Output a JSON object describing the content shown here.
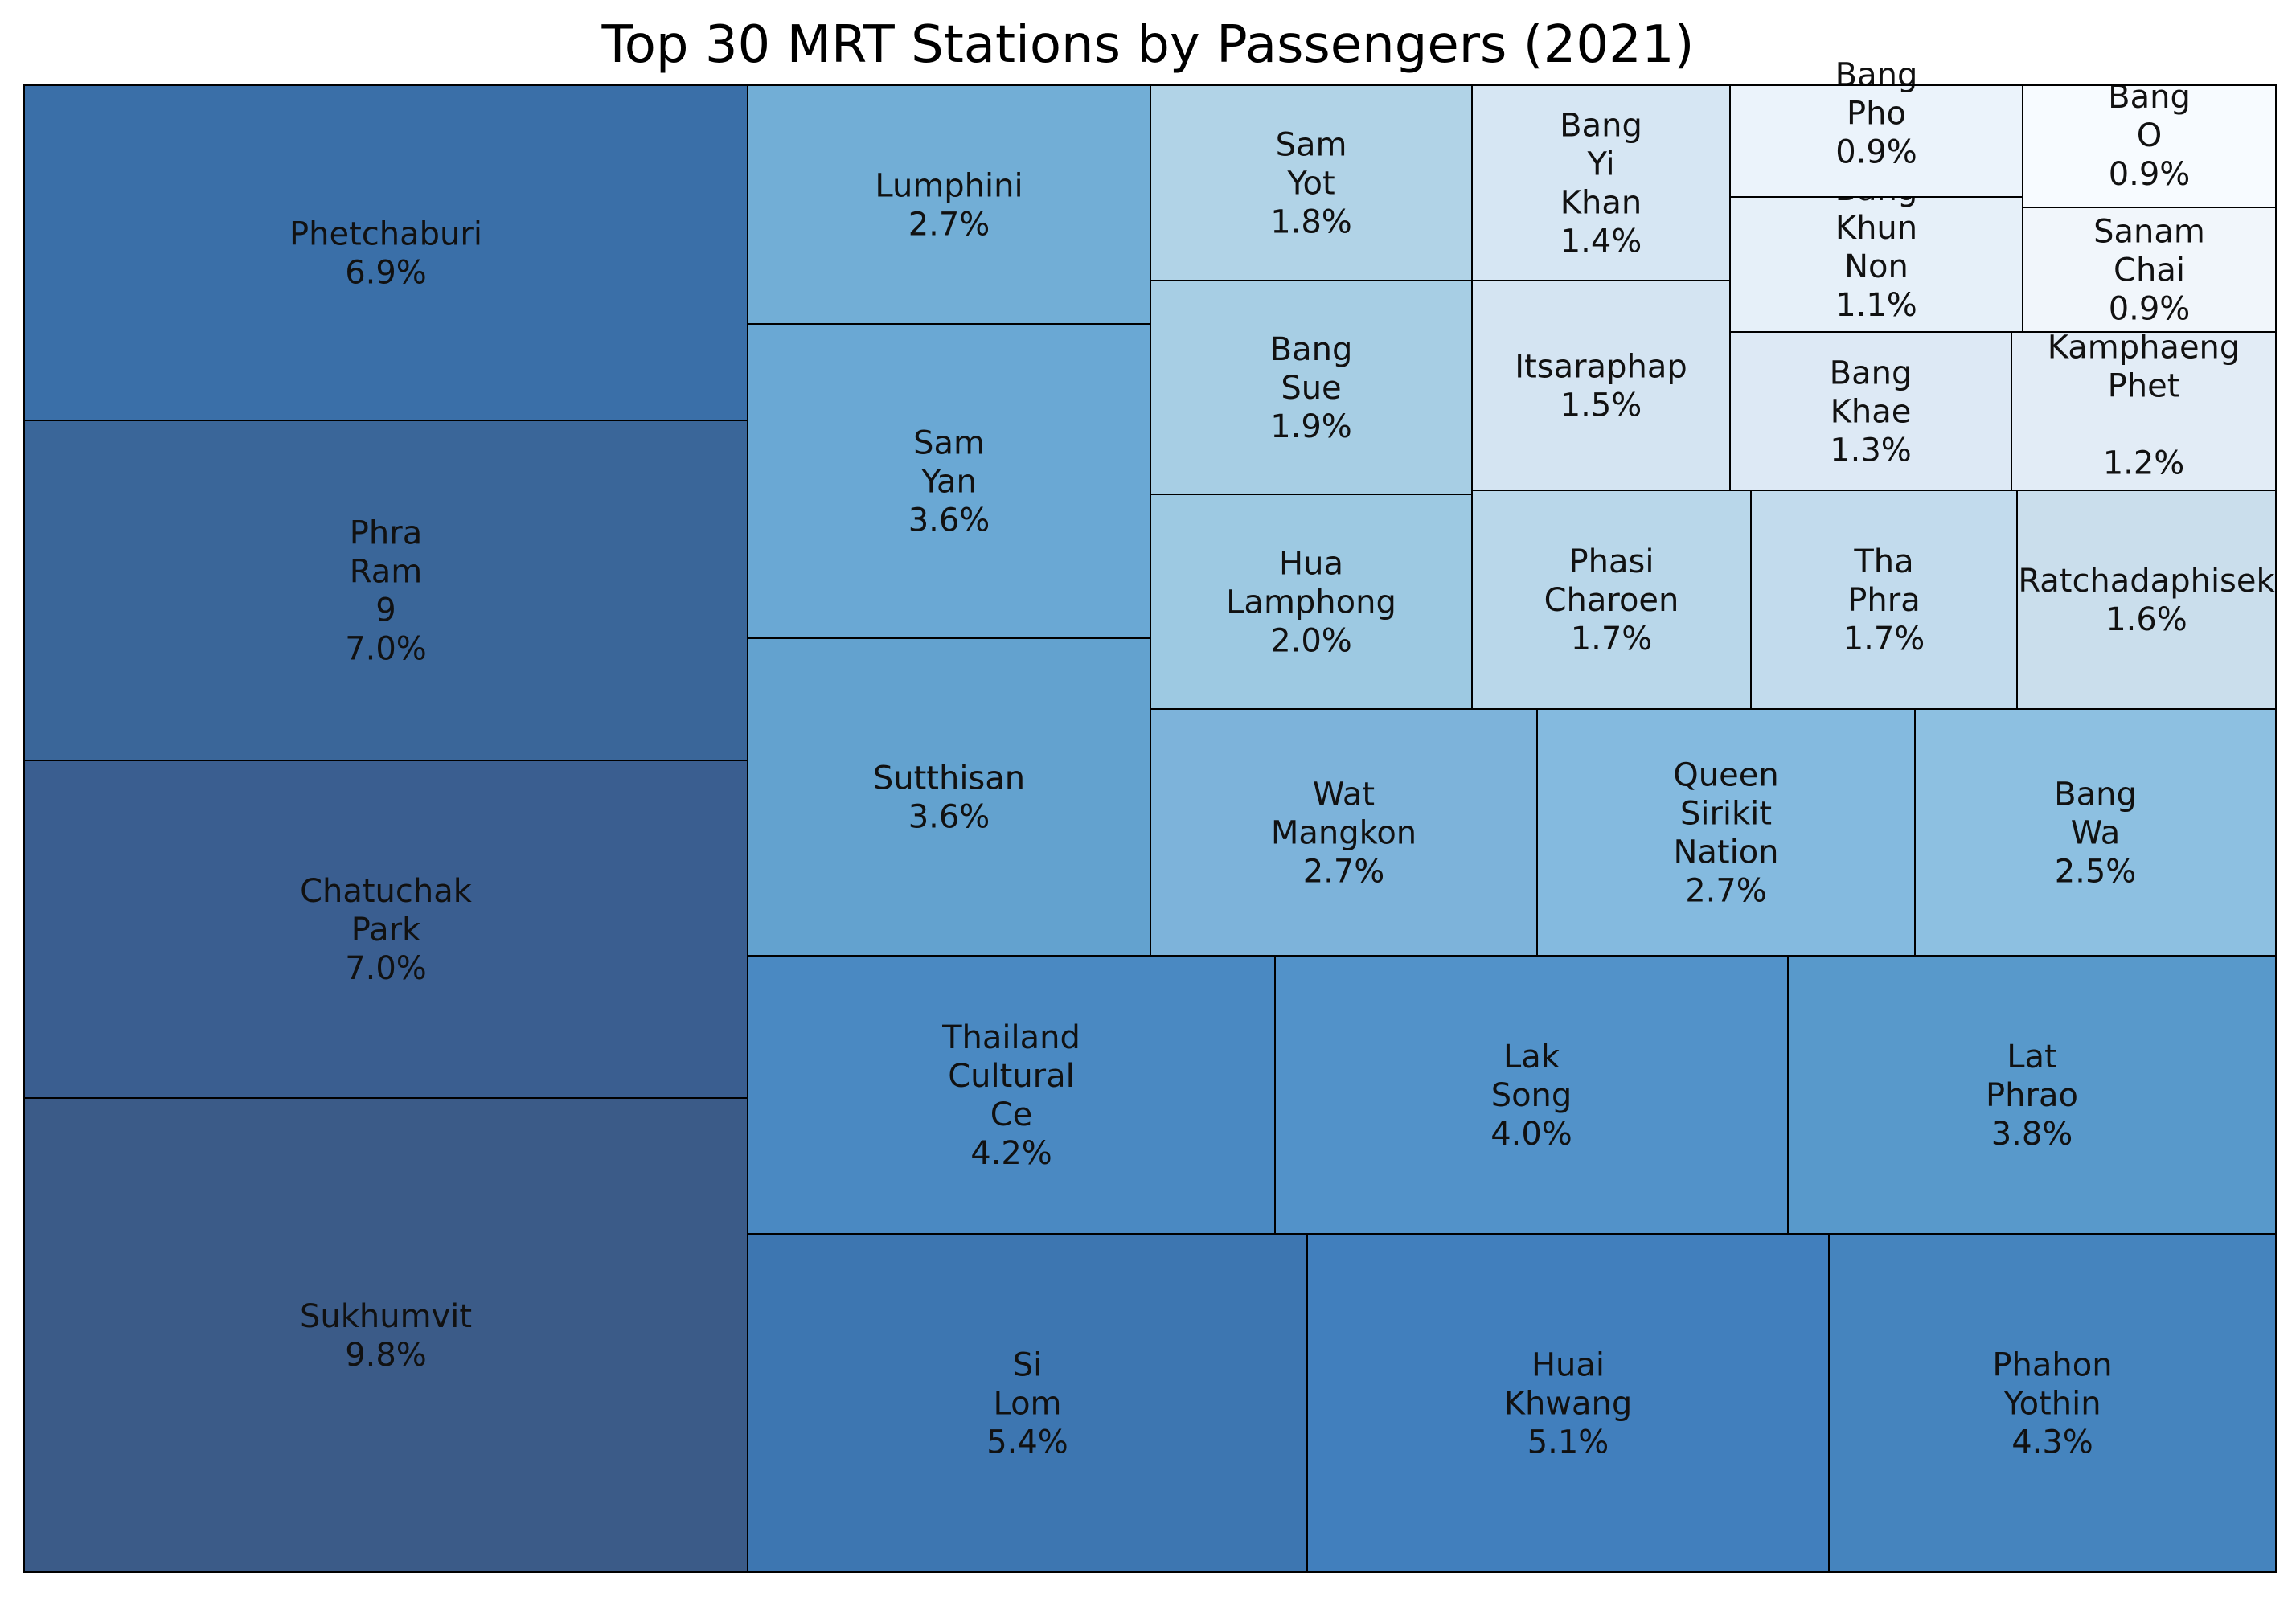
{
  "chart_data": {
    "type": "treemap",
    "title": "Top 30 MRT Stations by Passengers (2021)",
    "unit": "%",
    "items": [
      {
        "id": "sukhumvit",
        "label": [
          "Sukhumvit"
        ],
        "value": 9.8,
        "value_label": "9.8%",
        "color": "#3b5b88"
      },
      {
        "id": "chatuchak-park",
        "label": [
          "Chatuchak",
          "Park"
        ],
        "value": 7.0,
        "value_label": "7.0%",
        "color": "#3a5e90"
      },
      {
        "id": "phra-ram-9",
        "label": [
          "Phra",
          "Ram",
          "9"
        ],
        "value": 7.0,
        "value_label": "7.0%",
        "color": "#3a6699"
      },
      {
        "id": "phetchaburi",
        "label": [
          "Phetchaburi"
        ],
        "value": 6.9,
        "value_label": "6.9%",
        "color": "#3a6fa8"
      },
      {
        "id": "si-lom",
        "label": [
          "Si",
          "Lom"
        ],
        "value": 5.4,
        "value_label": "5.4%",
        "color": "#3d76b1"
      },
      {
        "id": "huai-khwang",
        "label": [
          "Huai",
          "Khwang"
        ],
        "value": 5.1,
        "value_label": "5.1%",
        "color": "#417fbd"
      },
      {
        "id": "phahon-yothin",
        "label": [
          "Phahon",
          "Yothin"
        ],
        "value": 4.3,
        "value_label": "4.3%",
        "color": "#4584be"
      },
      {
        "id": "thailand-cultural-ce",
        "label": [
          "Thailand",
          "Cultural",
          "Ce"
        ],
        "value": 4.2,
        "value_label": "4.2%",
        "color": "#4a89c2"
      },
      {
        "id": "lak-song",
        "label": [
          "Lak",
          "Song"
        ],
        "value": 4.0,
        "value_label": "4.0%",
        "color": "#5292c9"
      },
      {
        "id": "lat-phrao",
        "label": [
          "Lat",
          "Phrao"
        ],
        "value": 3.8,
        "value_label": "3.8%",
        "color": "#5899cb"
      },
      {
        "id": "sam-yan",
        "label": [
          "Sam",
          "Yan"
        ],
        "value": 3.6,
        "value_label": "3.6%",
        "color": "#6aa8d4"
      },
      {
        "id": "sutthisan",
        "label": [
          "Sutthisan"
        ],
        "value": 3.6,
        "value_label": "3.6%",
        "color": "#63a2cf"
      },
      {
        "id": "lumphini",
        "label": [
          "Lumphini"
        ],
        "value": 2.7,
        "value_label": "2.7%",
        "color": "#72aed6"
      },
      {
        "id": "wat-mangkon",
        "label": [
          "Wat",
          "Mangkon"
        ],
        "value": 2.7,
        "value_label": "2.7%",
        "color": "#7db3da"
      },
      {
        "id": "queen-sirikit-nation",
        "label": [
          "Queen",
          "Sirikit",
          "Nation"
        ],
        "value": 2.7,
        "value_label": "2.7%",
        "color": "#84badf"
      },
      {
        "id": "bang-wa",
        "label": [
          "Bang",
          "Wa"
        ],
        "value": 2.5,
        "value_label": "2.5%",
        "color": "#8dc0e1"
      },
      {
        "id": "hua-lamphong",
        "label": [
          "Hua",
          "Lamphong"
        ],
        "value": 2.0,
        "value_label": "2.0%",
        "color": "#9dc9e2"
      },
      {
        "id": "bang-sue",
        "label": [
          "Bang",
          "Sue"
        ],
        "value": 1.9,
        "value_label": "1.9%",
        "color": "#a7cee4"
      },
      {
        "id": "sam-yot",
        "label": [
          "Sam",
          "Yot"
        ],
        "value": 1.8,
        "value_label": "1.8%",
        "color": "#b1d3e7"
      },
      {
        "id": "phasi-charoen",
        "label": [
          "Phasi",
          "Charoen"
        ],
        "value": 1.7,
        "value_label": "1.7%",
        "color": "#b9d7ea"
      },
      {
        "id": "tha-phra",
        "label": [
          "Tha",
          "Phra"
        ],
        "value": 1.7,
        "value_label": "1.7%",
        "color": "#c2dbed"
      },
      {
        "id": "ratchadaphisek",
        "label": [
          "Ratchadaphisek"
        ],
        "value": 1.6,
        "value_label": "1.6%",
        "color": "#cadeec"
      },
      {
        "id": "itsaraphap",
        "label": [
          "Itsaraphap"
        ],
        "value": 1.5,
        "value_label": "1.5%",
        "color": "#d4e4f2"
      },
      {
        "id": "bang-yi-khan",
        "label": [
          "Bang",
          "Yi",
          "Khan"
        ],
        "value": 1.4,
        "value_label": "1.4%",
        "color": "#d6e6f3"
      },
      {
        "id": "bang-khae",
        "label": [
          "Bang",
          "Khae"
        ],
        "value": 1.3,
        "value_label": "1.3%",
        "color": "#dde9f5"
      },
      {
        "id": "kamphaeng-phet",
        "label": [
          "Kamphaeng",
          "Phet",
          ""
        ],
        "value": 1.2,
        "value_label": "1.2%",
        "color": "#e2ecf6"
      },
      {
        "id": "bang-khun-non",
        "label": [
          "Bang",
          "Khun",
          "Non"
        ],
        "value": 1.1,
        "value_label": "1.1%",
        "color": "#e6f0f9"
      },
      {
        "id": "bang-pho",
        "label": [
          "Bang",
          "Pho"
        ],
        "value": 0.9,
        "value_label": "0.9%",
        "color": "#ebf3fb"
      },
      {
        "id": "sanam-chai",
        "label": [
          "Sanam",
          "Chai"
        ],
        "value": 0.9,
        "value_label": "0.9%",
        "color": "#f1f6fb"
      },
      {
        "id": "bang-o",
        "label": [
          "Bang",
          "O"
        ],
        "value": 0.9,
        "value_label": "0.9%",
        "color": "#f7fbff"
      }
    ]
  }
}
